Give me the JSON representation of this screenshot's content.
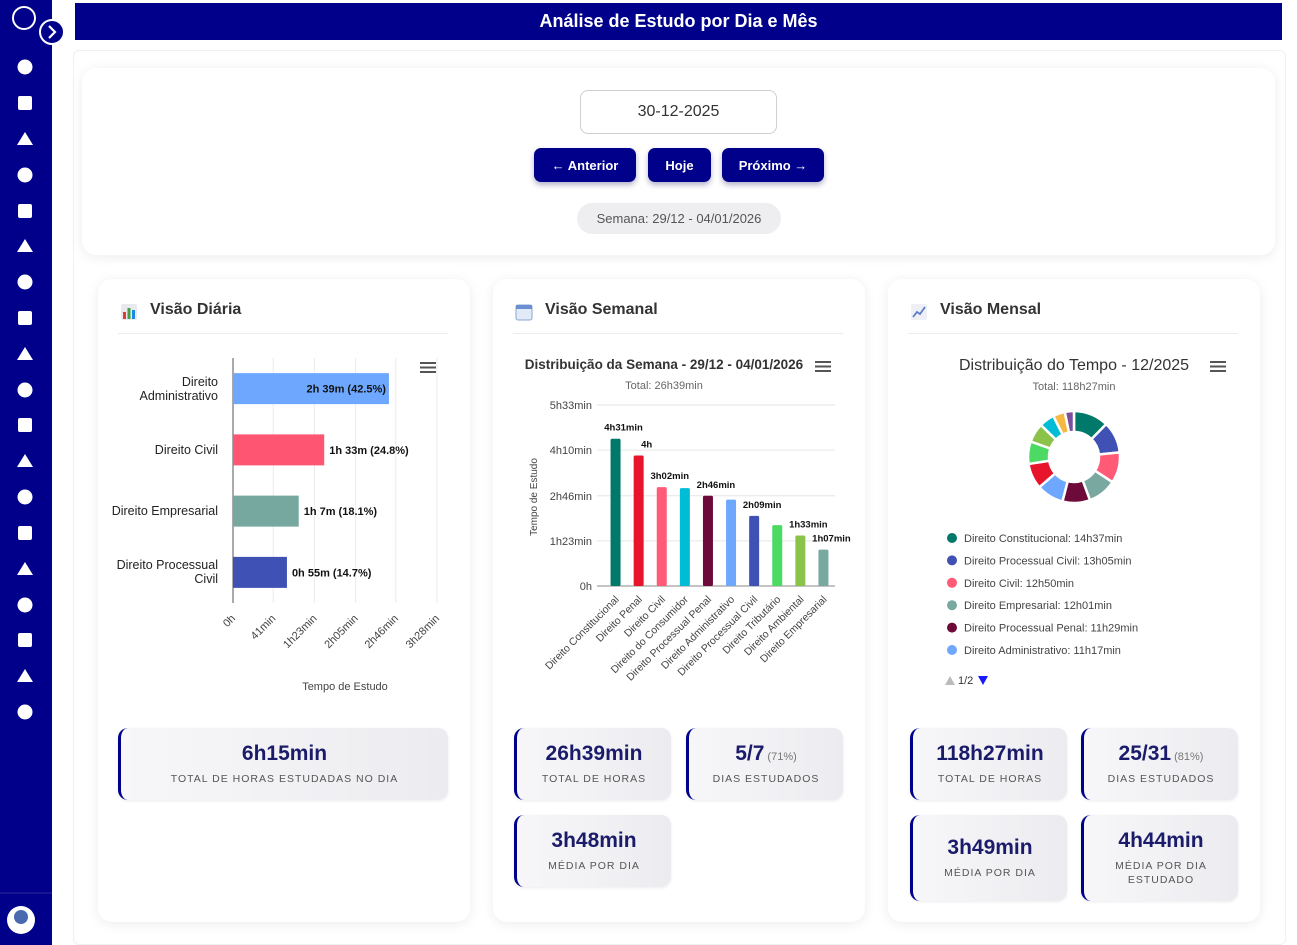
{
  "header": {
    "title": "Análise de Estudo por Dia e Mês"
  },
  "date_nav": {
    "date": "30-12-2025",
    "buttons": [
      "← Anterior",
      "Hoje",
      "Próximo →"
    ],
    "week": "Semana: 29/12 - 04/01/2026"
  },
  "daily": {
    "title": "Visão Diária",
    "chart_data": {
      "type": "barh",
      "categories": [
        "Direito Administrativo",
        "Direito Civil",
        "Direito Empresarial",
        "Direito Processual Civil"
      ],
      "values": [
        159,
        93,
        67,
        55
      ],
      "value_labels": [
        "2h 39m (42.5%)",
        "1h 33m (24.8%)",
        "1h 7m (18.1%)",
        "0h 55m (14.7%)"
      ],
      "colors": [
        "#6ea8fe",
        "#fe5672",
        "#76a89f",
        "#3f51b5"
      ],
      "xlim": [
        0,
        208
      ],
      "xticks": [
        {
          "value": 0,
          "label": "0h"
        },
        {
          "value": 41,
          "label": "41min"
        },
        {
          "value": 83,
          "label": "1h23min"
        },
        {
          "value": 125,
          "label": "2h05min"
        },
        {
          "value": 166,
          "label": "2h46min"
        },
        {
          "value": 208,
          "label": "3h28min"
        }
      ],
      "xlabel": "Tempo de Estudo",
      "grid": true
    },
    "stats": [
      {
        "value": "6h15min",
        "label": "TOTAL DE HORAS ESTUDADAS NO DIA"
      }
    ]
  },
  "weekly": {
    "title": "Visão Semanal",
    "chart_data": {
      "type": "bar",
      "title": "Distribuição da Semana - 29/12 - 04/01/2026",
      "subtitle": "Total: 26h39min",
      "categories": [
        "Direito Constitucional",
        "Direito Penal",
        "Direito Civil",
        "Direito do Consumidor",
        "Direito Processual Penal",
        "Direito Administrativo",
        "Direito Processual Civil",
        "Direito Tributário",
        "Direito Ambiental",
        "Direito Empresarial"
      ],
      "values": [
        271,
        240,
        182,
        180,
        166,
        159,
        129,
        112,
        93,
        67
      ],
      "value_labels": [
        "4h31min",
        "4h",
        "3h02min",
        null,
        "2h46min",
        null,
        "2h09min",
        null,
        "1h33min",
        "1h07min"
      ],
      "colors": [
        "#00796b",
        "#e8142c",
        "#ff5b77",
        "#00bcd4",
        "#6d0a3a",
        "#6ea8fe",
        "#3f51b5",
        "#4cd964",
        "#8bc34a",
        "#78a8a0"
      ],
      "ylim": [
        0,
        333
      ],
      "yticks": [
        {
          "value": 0,
          "label": "0h"
        },
        {
          "value": 83,
          "label": "1h23min"
        },
        {
          "value": 166,
          "label": "2h46min"
        },
        {
          "value": 250,
          "label": "4h10min"
        },
        {
          "value": 333,
          "label": "5h33min"
        }
      ],
      "ylabel": "Tempo de Estudo",
      "grid": true
    },
    "stats": [
      {
        "value": "26h39min",
        "label": "TOTAL DE HORAS"
      },
      {
        "value": "5/7",
        "note": "(71%)",
        "label": "DIAS ESTUDADOS"
      },
      {
        "value": "3h48min",
        "label": "MÉDIA POR DIA"
      }
    ]
  },
  "monthly": {
    "title": "Visão Mensal",
    "chart_data": {
      "type": "donut",
      "title": "Distribuição do Tempo - 12/2025",
      "subtitle": "Total: 118h27min",
      "values": [
        877,
        785,
        770,
        721,
        689,
        677,
        640,
        560,
        480,
        380,
        300,
        228
      ],
      "colors": [
        "#00796b",
        "#3f51b5",
        "#ff5b77",
        "#78a8a0",
        "#6d0a3a",
        "#6ea8fe",
        "#e8142c",
        "#4cd964",
        "#8bc34a",
        "#00bcd4",
        "#f5b942",
        "#7b4f9d"
      ],
      "legend": [
        "Direito Constitucional: 14h37min",
        "Direito Processual Civil: 13h05min",
        "Direito Civil: 12h50min",
        "Direito Empresarial: 12h01min",
        "Direito Processual Penal: 11h29min",
        "Direito Administrativo: 11h17min"
      ],
      "legend_page": "1/2"
    },
    "stats": [
      {
        "value": "118h27min",
        "label": "TOTAL DE HORAS"
      },
      {
        "value": "25/31",
        "note": "(81%)",
        "label": "DIAS ESTUDADOS"
      },
      {
        "value": "3h49min",
        "label": "MÉDIA POR DIA"
      },
      {
        "value": "4h44min",
        "label": "MÉDIA POR DIA ESTUDADO"
      }
    ]
  }
}
